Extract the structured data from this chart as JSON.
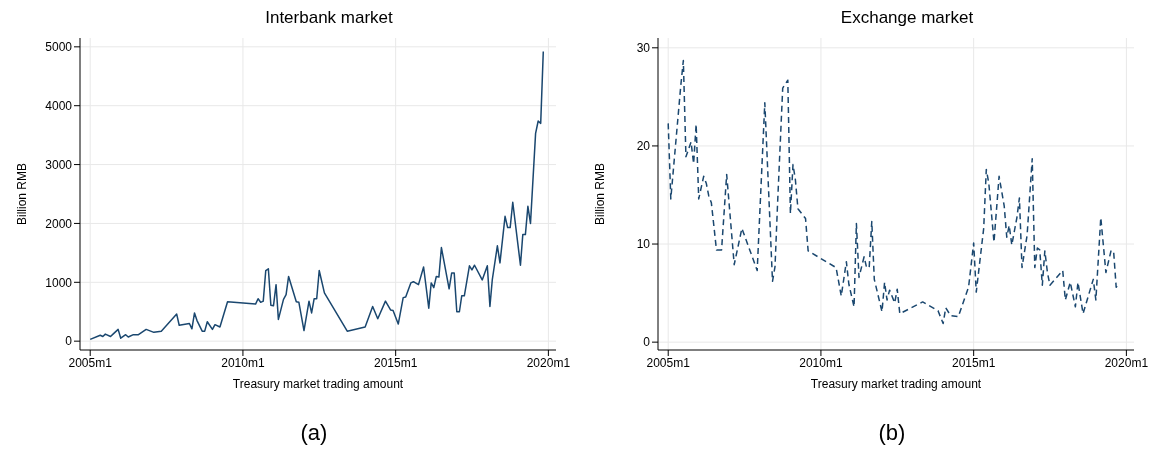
{
  "chart_data": [
    {
      "type": "line",
      "title": "Interbank market",
      "xlabel": "Treasury market trading amount",
      "ylabel": "Billion RMB",
      "annotations": [
        "(a)"
      ],
      "grid": true,
      "line_style": "solid",
      "xlim": [
        "2004-09",
        "2020-04"
      ],
      "xticks": [
        {
          "value": "2005-01",
          "label": "2005m1"
        },
        {
          "value": "2010-01",
          "label": "2010m1"
        },
        {
          "value": "2015-01",
          "label": "2015m1"
        },
        {
          "value": "2020-01",
          "label": "2020m1"
        }
      ],
      "ylim": [
        -150,
        5150
      ],
      "yticks": [
        0,
        1000,
        2000,
        3000,
        4000,
        5000
      ],
      "series": [
        {
          "color": "#1a476f",
          "x": [
            "2005-01",
            "2005-05",
            "2005-06",
            "2005-07",
            "2005-09",
            "2005-10",
            "2005-12",
            "2006-01",
            "2006-03",
            "2006-04",
            "2006-06",
            "2006-08",
            "2006-11",
            "2007-02",
            "2007-05",
            "2007-11",
            "2007-12",
            "2008-04",
            "2008-05",
            "2008-06",
            "2008-07",
            "2008-09",
            "2008-10",
            "2008-11",
            "2009-01",
            "2009-02",
            "2009-04",
            "2009-07",
            "2010-06",
            "2010-07",
            "2010-08",
            "2010-09",
            "2010-10",
            "2010-11",
            "2010-12",
            "2011-01",
            "2011-02",
            "2011-03",
            "2011-05",
            "2011-06",
            "2011-07",
            "2011-10",
            "2011-11",
            "2012-01",
            "2012-03",
            "2012-04",
            "2012-05",
            "2012-06",
            "2012-07",
            "2012-09",
            "2013-06",
            "2014-01",
            "2014-04",
            "2014-06",
            "2014-09",
            "2014-11",
            "2014-12",
            "2015-02",
            "2015-04",
            "2015-05",
            "2015-07",
            "2015-08",
            "2015-10",
            "2015-12",
            "2016-02",
            "2016-03",
            "2016-04",
            "2016-05",
            "2016-06",
            "2016-07",
            "2016-10",
            "2016-11",
            "2016-12",
            "2017-01",
            "2017-02",
            "2017-03",
            "2017-04",
            "2017-06",
            "2017-07",
            "2017-08",
            "2017-11",
            "2018-01",
            "2018-02",
            "2018-03",
            "2018-05",
            "2018-06",
            "2018-08",
            "2018-09",
            "2018-10",
            "2018-11",
            "2019-02",
            "2019-03",
            "2019-04",
            "2019-05",
            "2019-06",
            "2019-08",
            "2019-09",
            "2019-10",
            "2019-11"
          ],
          "values": [
            30,
            100,
            80,
            120,
            80,
            120,
            200,
            50,
            110,
            70,
            110,
            110,
            200,
            150,
            170,
            460,
            270,
            300,
            210,
            480,
            350,
            170,
            170,
            330,
            200,
            280,
            240,
            670,
            630,
            720,
            660,
            680,
            1200,
            1230,
            610,
            600,
            960,
            370,
            710,
            790,
            1100,
            670,
            660,
            180,
            680,
            480,
            720,
            720,
            1200,
            820,
            170,
            240,
            590,
            380,
            680,
            530,
            520,
            290,
            740,
            750,
            990,
            1010,
            960,
            1260,
            560,
            990,
            910,
            1100,
            1090,
            1590,
            890,
            1160,
            1160,
            500,
            500,
            770,
            770,
            1280,
            1210,
            1290,
            1040,
            1280,
            590,
            1040,
            1620,
            1330,
            2120,
            1930,
            1930,
            2360,
            1290,
            1810,
            1810,
            2290,
            2000,
            3530,
            3740,
            3700,
            4920
          ]
        }
      ]
    },
    {
      "type": "line",
      "title": "Exchange market",
      "xlabel": "Treasury market trading amount",
      "ylabel": "Billion RMB",
      "annotations": [
        "(b)"
      ],
      "grid": true,
      "line_style": "dashed",
      "xlim": [
        "2004-09",
        "2020-04"
      ],
      "xticks": [
        {
          "value": "2005-01",
          "label": "2005m1"
        },
        {
          "value": "2010-01",
          "label": "2010m1"
        },
        {
          "value": "2015-01",
          "label": "2015m1"
        },
        {
          "value": "2020-01",
          "label": "2020m1"
        }
      ],
      "ylim": [
        -0.8,
        31
      ],
      "yticks": [
        0,
        10,
        20,
        30
      ],
      "series": [
        {
          "color": "#1a476f",
          "x": [
            "2005-01",
            "2005-02",
            "2005-06",
            "2005-07",
            "2005-08",
            "2005-10",
            "2005-11",
            "2005-12",
            "2006-01",
            "2006-03",
            "2006-04",
            "2006-05",
            "2006-06",
            "2006-08",
            "2006-10",
            "2006-12",
            "2007-03",
            "2007-06",
            "2007-12",
            "2008-03",
            "2008-06",
            "2008-07",
            "2008-08",
            "2008-10",
            "2008-12",
            "2009-01",
            "2009-02",
            "2009-03",
            "2009-04",
            "2009-07",
            "2009-08",
            "2010-07",
            "2010-09",
            "2010-11",
            "2010-12",
            "2011-02",
            "2011-03",
            "2011-04",
            "2011-06",
            "2011-07",
            "2011-08",
            "2011-09",
            "2011-10",
            "2012-01",
            "2012-02",
            "2012-03",
            "2012-04",
            "2012-06",
            "2012-07",
            "2012-08",
            "2013-05",
            "2013-11",
            "2014-01",
            "2014-02",
            "2014-04",
            "2014-07",
            "2014-11",
            "2015-01",
            "2015-02",
            "2015-05",
            "2015-06",
            "2015-07",
            "2015-09",
            "2015-11",
            "2016-01",
            "2016-02",
            "2016-03",
            "2016-04",
            "2016-06",
            "2016-07",
            "2016-08",
            "2016-10",
            "2016-12",
            "2017-01",
            "2017-02",
            "2017-03",
            "2017-04",
            "2017-05",
            "2017-06",
            "2017-07",
            "2017-12",
            "2018-01",
            "2018-03",
            "2018-05",
            "2018-06",
            "2018-08",
            "2018-12",
            "2019-01",
            "2019-03",
            "2019-05",
            "2019-07",
            "2019-08",
            "2019-09",
            "2019-10"
          ],
          "values": [
            22.3,
            14.6,
            26.2,
            28.7,
            18.9,
            20.4,
            18.2,
            22.2,
            14.6,
            16.9,
            16.2,
            14.9,
            14.2,
            9.4,
            9.4,
            17.1,
            7.9,
            11.6,
            7.3,
            24.4,
            6.2,
            7.7,
            14.2,
            25.9,
            26.7,
            13.1,
            18.1,
            16.6,
            13.6,
            12.6,
            9.3,
            7.6,
            4.7,
            8.2,
            5.9,
            3.6,
            12.1,
            6.6,
            8.7,
            7.6,
            7.6,
            12.3,
            6.4,
            3.1,
            6.1,
            4.3,
            5.3,
            4.0,
            5.4,
            2.9,
            4.1,
            3.2,
            1.9,
            3.5,
            2.7,
            2.6,
            5.6,
            10.1,
            5.1,
            11.6,
            17.6,
            16.2,
            10.2,
            16.9,
            13.9,
            10.7,
            11.9,
            9.9,
            12.7,
            14.7,
            7.6,
            10.9,
            18.7,
            7.6,
            9.6,
            9.4,
            5.8,
            9.3,
            7.1,
            5.8,
            7.3,
            4.3,
            6.1,
            3.6,
            6.1,
            2.9,
            6.4,
            4.3,
            12.7,
            7.1,
            9.3,
            9.3,
            5.6,
            5.9
          ]
        }
      ]
    }
  ]
}
